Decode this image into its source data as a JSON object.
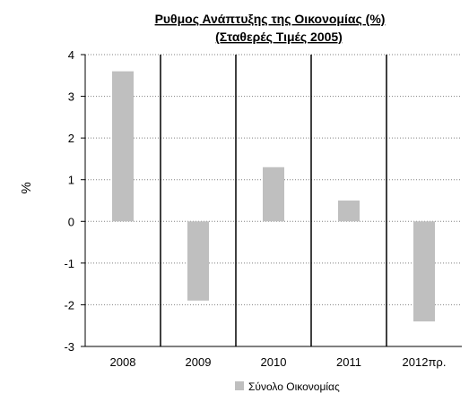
{
  "chart_data": {
    "type": "bar",
    "title_lines": [
      "Ρυθμος Ανάπτυξης της Οικονομίας (%)",
      "(Σταθερές Τιμές 2005)"
    ],
    "xlabel": "",
    "ylabel": "%",
    "categories": [
      "2008",
      "2009",
      "2010",
      "2011",
      "2012πρ."
    ],
    "series": [
      {
        "name": "Σύνολο Οικονομίας",
        "values": [
          3.6,
          -1.9,
          1.3,
          0.5,
          -2.4
        ],
        "color": "#bfbfbf"
      }
    ],
    "ylim": [
      -3,
      4
    ],
    "yticks": [
      "4",
      "3",
      "2",
      "1",
      "0",
      "-1",
      "-2",
      "-3"
    ],
    "grid": "horizontal dotted, vertical solid separators",
    "legend": "bottom"
  }
}
